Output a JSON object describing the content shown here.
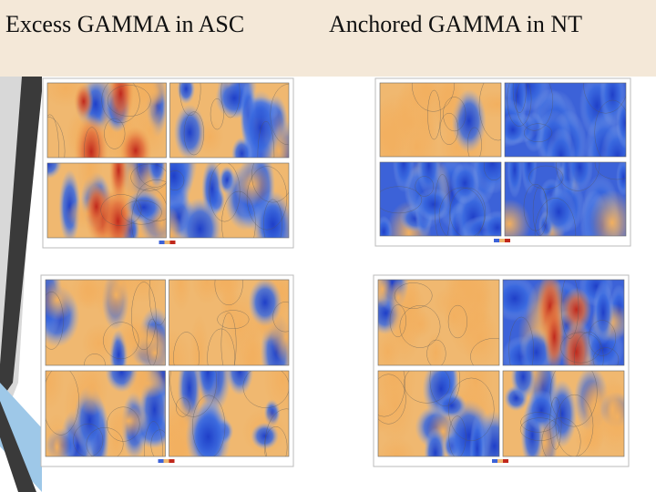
{
  "slide": {
    "titles": [
      "Excess GAMMA in ASC",
      "Anchored GAMMA in NT"
    ]
  }
}
